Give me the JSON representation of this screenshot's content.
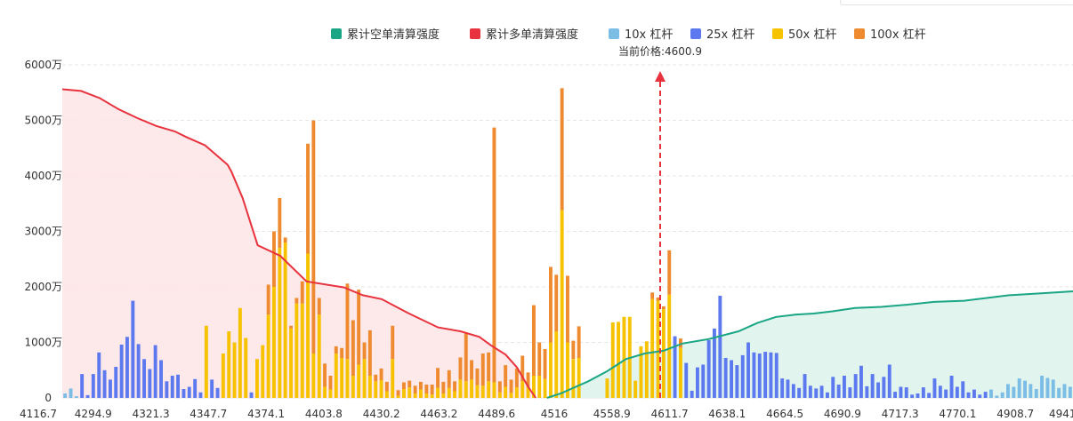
{
  "chart_data": {
    "type": "bar+area",
    "legend": [
      {
        "name": "累计空单清算强度",
        "color": "#1aa584",
        "shape": "square"
      },
      {
        "name": "累计多单清算强度",
        "color": "#e8323d",
        "shape": "square"
      },
      {
        "name": "10x 杠杆",
        "color": "#7cbde6",
        "shape": "square"
      },
      {
        "name": "25x 杠杆",
        "color": "#5c79f0",
        "shape": "square"
      },
      {
        "name": "50x 杠杆",
        "color": "#f7c300",
        "shape": "square"
      },
      {
        "name": "100x 杠杆",
        "color": "#ee8a2f",
        "shape": "square"
      }
    ],
    "annotation": {
      "label": "当前价格:4600.9",
      "value": 4600.9,
      "color": "#e8323d",
      "style": "dashed-arrow"
    },
    "y_axis": {
      "ticks": [
        "0",
        "1000万",
        "2000万",
        "3000万",
        "4000万",
        "5000万",
        "6000万"
      ],
      "min": 0,
      "max": 6000,
      "unit": "万"
    },
    "x_tick_labels": [
      "4116.7",
      "4294.9",
      "4321.3",
      "4347.7",
      "4374.1",
      "4403.8",
      "4430.2",
      "4463.2",
      "4489.6",
      "4516",
      "4558.9",
      "4611.7",
      "4638.1",
      "4664.5",
      "4690.9",
      "4717.3",
      "4770.1",
      "4908.7",
      "4941.7"
    ],
    "grid": "horizontal-dashed",
    "bar_count": 179,
    "bars": [
      {
        "t": 10,
        "v": 80
      },
      {
        "t": 10,
        "v": 170
      },
      {
        "t": 10,
        "v": 30
      },
      {
        "t": 25,
        "v": 430
      },
      {
        "t": 25,
        "v": 50
      },
      {
        "t": 25,
        "v": 430
      },
      {
        "t": 25,
        "v": 820
      },
      {
        "t": 25,
        "v": 500
      },
      {
        "t": 25,
        "v": 330
      },
      {
        "t": 25,
        "v": 560
      },
      {
        "t": 25,
        "v": 960
      },
      {
        "t": 25,
        "v": 1100
      },
      {
        "t": 25,
        "v": 1750
      },
      {
        "t": 25,
        "v": 970
      },
      {
        "t": 25,
        "v": 700
      },
      {
        "t": 25,
        "v": 520
      },
      {
        "t": 25,
        "v": 950
      },
      {
        "t": 25,
        "v": 680
      },
      {
        "t": 25,
        "v": 300
      },
      {
        "t": 25,
        "v": 400
      },
      {
        "t": 25,
        "v": 420
      },
      {
        "t": 25,
        "v": 160
      },
      {
        "t": 25,
        "v": 200
      },
      {
        "t": 25,
        "v": 340
      },
      {
        "t": 25,
        "v": 100
      },
      {
        "t": 50,
        "v": 1300
      },
      {
        "t": 25,
        "v": 330
      },
      {
        "t": 25,
        "v": 180
      },
      {
        "t": 50,
        "v": 800
      },
      {
        "t": 50,
        "v": 1200
      },
      {
        "t": 50,
        "v": 1000
      },
      {
        "t": 50,
        "v": 1620
      },
      {
        "t": 50,
        "v": 1080
      },
      {
        "t": 25,
        "v": 100
      },
      {
        "t": 50,
        "v": 700
      },
      {
        "t": 50,
        "v": 950
      },
      {
        "t": 100,
        "v": 2040,
        "s": 1500
      },
      {
        "t": 100,
        "v": 3000,
        "s": 2000
      },
      {
        "t": 100,
        "v": 3600,
        "s": 2700
      },
      {
        "t": 100,
        "v": 2890,
        "s": 2800
      },
      {
        "t": 100,
        "v": 1300,
        "s": 1250
      },
      {
        "t": 100,
        "v": 1800,
        "s": 1700
      },
      {
        "t": 100,
        "v": 2100,
        "s": 1700
      },
      {
        "t": 100,
        "v": 4580,
        "s": 2600
      },
      {
        "t": 100,
        "v": 5000,
        "s": 800
      },
      {
        "t": 100,
        "v": 1800,
        "s": 1500
      },
      {
        "t": 100,
        "v": 620,
        "s": 200
      },
      {
        "t": 100,
        "v": 400,
        "s": 150
      },
      {
        "t": 100,
        "v": 930,
        "s": 800
      },
      {
        "t": 100,
        "v": 900,
        "s": 720
      },
      {
        "t": 100,
        "v": 2060,
        "s": 700
      },
      {
        "t": 100,
        "v": 1400,
        "s": 400
      },
      {
        "t": 100,
        "v": 1950,
        "s": 600
      },
      {
        "t": 100,
        "v": 1000,
        "s": 700
      },
      {
        "t": 100,
        "v": 1220,
        "s": 400
      },
      {
        "t": 100,
        "v": 420,
        "s": 300
      },
      {
        "t": 100,
        "v": 530,
        "s": 320
      },
      {
        "t": 100,
        "v": 290,
        "s": 120
      },
      {
        "t": 100,
        "v": 1300,
        "s": 700
      },
      {
        "t": 100,
        "v": 140,
        "s": 40
      },
      {
        "t": 100,
        "v": 280,
        "s": 160
      },
      {
        "t": 100,
        "v": 310,
        "s": 190
      },
      {
        "t": 100,
        "v": 220,
        "s": 80
      },
      {
        "t": 100,
        "v": 290,
        "s": 150
      },
      {
        "t": 100,
        "v": 240,
        "s": 80
      },
      {
        "t": 100,
        "v": 240,
        "s": 60
      },
      {
        "t": 100,
        "v": 540,
        "s": 180
      },
      {
        "t": 100,
        "v": 290,
        "s": 80
      },
      {
        "t": 100,
        "v": 500,
        "s": 180
      },
      {
        "t": 100,
        "v": 300,
        "s": 120
      },
      {
        "t": 100,
        "v": 730,
        "s": 330
      },
      {
        "t": 100,
        "v": 1160,
        "s": 300
      },
      {
        "t": 100,
        "v": 680,
        "s": 330
      },
      {
        "t": 100,
        "v": 530,
        "s": 230
      },
      {
        "t": 100,
        "v": 800,
        "s": 220
      },
      {
        "t": 100,
        "v": 820,
        "s": 300
      },
      {
        "t": 100,
        "v": 4870,
        "s": 280
      },
      {
        "t": 100,
        "v": 300,
        "s": 100
      },
      {
        "t": 100,
        "v": 590,
        "s": 200
      },
      {
        "t": 100,
        "v": 330,
        "s": 90
      },
      {
        "t": 100,
        "v": 530,
        "s": 190
      },
      {
        "t": 100,
        "v": 760,
        "s": 300
      },
      {
        "t": 100,
        "v": 460,
        "s": 200
      },
      {
        "t": 100,
        "v": 1670,
        "s": 400
      },
      {
        "t": 100,
        "v": 1000,
        "s": 400
      },
      {
        "t": 100,
        "v": 880,
        "s": 340
      },
      {
        "t": 100,
        "v": 2360,
        "s": 1000
      },
      {
        "t": 100,
        "v": 2220,
        "s": 1200
      },
      {
        "t": 100,
        "v": 5580,
        "s": 3380
      },
      {
        "t": 100,
        "v": 2200,
        "s": 1000
      },
      {
        "t": 100,
        "v": 1030,
        "s": 700
      },
      {
        "t": 100,
        "v": 1290,
        "s": 720
      },
      {
        "t": 0,
        "v": 0
      },
      {
        "t": 0,
        "v": 0
      },
      {
        "t": 0,
        "v": 0
      },
      {
        "t": 0,
        "v": 0
      },
      {
        "t": 50,
        "v": 350
      },
      {
        "t": 50,
        "v": 1360
      },
      {
        "t": 50,
        "v": 1370
      },
      {
        "t": 50,
        "v": 1460
      },
      {
        "t": 50,
        "v": 1460
      },
      {
        "t": 50,
        "v": 310
      },
      {
        "t": 50,
        "v": 930
      },
      {
        "t": 50,
        "v": 1020
      },
      {
        "t": 100,
        "v": 1900,
        "s": 1780
      },
      {
        "t": 100,
        "v": 1810,
        "s": 1750
      },
      {
        "t": 100,
        "v": 1650,
        "s": 1600
      },
      {
        "t": 100,
        "v": 2660,
        "s": 1860
      },
      {
        "t": 25,
        "v": 1110
      },
      {
        "t": 100,
        "v": 1070,
        "s": 900
      },
      {
        "t": 25,
        "v": 630
      },
      {
        "t": 25,
        "v": 130
      },
      {
        "t": 25,
        "v": 550
      },
      {
        "t": 25,
        "v": 600
      },
      {
        "t": 25,
        "v": 1040
      },
      {
        "t": 25,
        "v": 1250
      },
      {
        "t": 25,
        "v": 1840
      },
      {
        "t": 25,
        "v": 720
      },
      {
        "t": 25,
        "v": 680
      },
      {
        "t": 25,
        "v": 590
      },
      {
        "t": 25,
        "v": 770
      },
      {
        "t": 25,
        "v": 1000
      },
      {
        "t": 25,
        "v": 820
      },
      {
        "t": 25,
        "v": 800
      },
      {
        "t": 25,
        "v": 830
      },
      {
        "t": 25,
        "v": 820
      },
      {
        "t": 25,
        "v": 810
      },
      {
        "t": 25,
        "v": 350
      },
      {
        "t": 25,
        "v": 330
      },
      {
        "t": 25,
        "v": 250
      },
      {
        "t": 25,
        "v": 180
      },
      {
        "t": 25,
        "v": 430
      },
      {
        "t": 25,
        "v": 220
      },
      {
        "t": 25,
        "v": 170
      },
      {
        "t": 25,
        "v": 220
      },
      {
        "t": 25,
        "v": 100
      },
      {
        "t": 25,
        "v": 380
      },
      {
        "t": 25,
        "v": 240
      },
      {
        "t": 25,
        "v": 400
      },
      {
        "t": 25,
        "v": 190
      },
      {
        "t": 25,
        "v": 430
      },
      {
        "t": 25,
        "v": 580
      },
      {
        "t": 25,
        "v": 210
      },
      {
        "t": 25,
        "v": 430
      },
      {
        "t": 25,
        "v": 280
      },
      {
        "t": 25,
        "v": 380
      },
      {
        "t": 25,
        "v": 600
      },
      {
        "t": 25,
        "v": 110
      },
      {
        "t": 25,
        "v": 200
      },
      {
        "t": 25,
        "v": 190
      },
      {
        "t": 25,
        "v": 60
      },
      {
        "t": 25,
        "v": 80
      },
      {
        "t": 25,
        "v": 190
      },
      {
        "t": 25,
        "v": 90
      },
      {
        "t": 25,
        "v": 350
      },
      {
        "t": 25,
        "v": 220
      },
      {
        "t": 25,
        "v": 150
      },
      {
        "t": 25,
        "v": 400
      },
      {
        "t": 25,
        "v": 200
      },
      {
        "t": 25,
        "v": 300
      },
      {
        "t": 25,
        "v": 100
      },
      {
        "t": 25,
        "v": 150
      },
      {
        "t": 25,
        "v": 60
      },
      {
        "t": 25,
        "v": 110
      },
      {
        "t": 10,
        "v": 150
      },
      {
        "t": 10,
        "v": 40
      },
      {
        "t": 10,
        "v": 100
      },
      {
        "t": 10,
        "v": 250
      },
      {
        "t": 10,
        "v": 200
      },
      {
        "t": 10,
        "v": 350
      },
      {
        "t": 10,
        "v": 310
      },
      {
        "t": 10,
        "v": 250
      },
      {
        "t": 10,
        "v": 160
      },
      {
        "t": 10,
        "v": 400
      },
      {
        "t": 10,
        "v": 360
      },
      {
        "t": 10,
        "v": 330
      },
      {
        "t": 10,
        "v": 180
      },
      {
        "t": 10,
        "v": 250
      },
      {
        "t": 10,
        "v": 200
      }
    ],
    "long_curve": [
      [
        0,
        5560
      ],
      [
        5,
        5530
      ],
      [
        10,
        5400
      ],
      [
        15,
        5200
      ],
      [
        20,
        5040
      ],
      [
        25,
        4900
      ],
      [
        30,
        4800
      ],
      [
        33,
        4700
      ],
      [
        38,
        4550
      ],
      [
        44,
        4200
      ],
      [
        45,
        4080
      ],
      [
        48,
        3600
      ],
      [
        52,
        2750
      ],
      [
        58,
        2560
      ],
      [
        65,
        2100
      ],
      [
        75,
        1990
      ],
      [
        80,
        1850
      ],
      [
        85,
        1780
      ],
      [
        92,
        1530
      ],
      [
        100,
        1270
      ],
      [
        106,
        1200
      ],
      [
        111,
        1100
      ],
      [
        114,
        950
      ],
      [
        118,
        780
      ],
      [
        121,
        550
      ],
      [
        124,
        200
      ],
      [
        126,
        0
      ]
    ],
    "short_curve": [
      [
        129,
        0
      ],
      [
        133,
        90
      ],
      [
        135,
        150
      ],
      [
        140,
        300
      ],
      [
        145,
        480
      ],
      [
        150,
        700
      ],
      [
        155,
        800
      ],
      [
        160,
        850
      ],
      [
        165,
        980
      ],
      [
        172,
        1060
      ],
      [
        180,
        1200
      ],
      [
        185,
        1350
      ],
      [
        190,
        1460
      ],
      [
        195,
        1500
      ],
      [
        200,
        1520
      ],
      [
        205,
        1560
      ],
      [
        211,
        1620
      ],
      [
        218,
        1640
      ],
      [
        225,
        1680
      ],
      [
        232,
        1730
      ],
      [
        240,
        1750
      ],
      [
        246,
        1800
      ],
      [
        252,
        1850
      ],
      [
        262,
        1890
      ],
      [
        269,
        1920
      ]
    ]
  }
}
